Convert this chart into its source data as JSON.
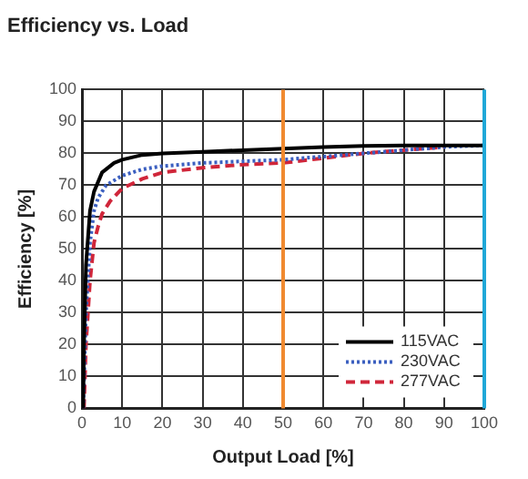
{
  "chart_data": {
    "type": "line",
    "title": "Efficiency vs. Load",
    "xlabel": "Output Load [%]",
    "ylabel": "Efficiency [%]",
    "xlim": [
      0,
      100
    ],
    "xticks": [
      0,
      10,
      20,
      30,
      40,
      50,
      60,
      70,
      80,
      90,
      100
    ],
    "ylim": [
      0,
      100
    ],
    "yticks": [
      0,
      10,
      20,
      30,
      40,
      50,
      60,
      70,
      80,
      90,
      100
    ],
    "grid": true,
    "legend": "bottom right",
    "marker": "none",
    "series": [
      {
        "name": "115VAC",
        "color": "#000000",
        "line_style": "solid",
        "x": [
          0.3,
          0.5,
          1,
          2,
          3,
          5,
          8,
          10,
          15,
          20,
          30,
          40,
          50,
          60,
          70,
          80,
          90,
          100
        ],
        "values": [
          0,
          20,
          45,
          62,
          68,
          74,
          77,
          78,
          79.5,
          80,
          80.5,
          81,
          81.5,
          82,
          82.3,
          82.5,
          82.5,
          82.5
        ]
      },
      {
        "name": "230VAC",
        "color": "#3b5fc0",
        "line_style": "dotted",
        "x": [
          0.3,
          1,
          2,
          3,
          4,
          6,
          10,
          15,
          20,
          30,
          40,
          50,
          60,
          70,
          80,
          90,
          100
        ],
        "values": [
          0,
          30,
          52,
          62,
          66,
          70,
          73,
          75,
          76,
          77,
          77.5,
          78,
          79,
          80,
          81,
          82,
          82.5
        ]
      },
      {
        "name": "277VAC",
        "color": "#d0263a",
        "line_style": "dashed",
        "x": [
          0.5,
          1,
          2,
          3,
          4,
          5,
          7,
          10,
          15,
          20,
          30,
          40,
          50,
          60,
          70,
          80,
          90
        ],
        "values": [
          0,
          20,
          40,
          52,
          57,
          61,
          65,
          69,
          72,
          74,
          75.5,
          76.5,
          77,
          78.5,
          80,
          81,
          82
        ]
      }
    ],
    "ref_lines": [
      {
        "axis": "x",
        "value": 50,
        "color": "#f08a30"
      },
      {
        "axis": "x",
        "value": 100,
        "color": "#1fa8d8"
      }
    ]
  }
}
